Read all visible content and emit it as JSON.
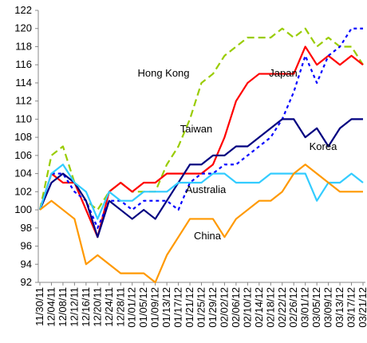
{
  "chart_data": {
    "type": "line",
    "categories": [
      "11/30/11",
      "12/04/11",
      "12/08/11",
      "12/12/11",
      "12/16/11",
      "12/20/11",
      "12/24/11",
      "12/28/11",
      "01/01/12",
      "01/05/12",
      "01/09/12",
      "01/13/12",
      "01/17/12",
      "01/21/12",
      "01/25/12",
      "01/29/12",
      "02/02/12",
      "02/06/12",
      "02/10/12",
      "02/14/12",
      "02/18/12",
      "02/22/12",
      "02/26/12",
      "03/01/12",
      "03/05/12",
      "03/09/12",
      "03/13/12",
      "03/17/12",
      "03/21/12"
    ],
    "series": [
      {
        "name": "Hong Kong",
        "color": "#99cc00",
        "dash": "9,5",
        "values": [
          100,
          106,
          107,
          103,
          101,
          100,
          102,
          103,
          102,
          102,
          102,
          105,
          107,
          110,
          114,
          115,
          117,
          118,
          119,
          119,
          119,
          120,
          119,
          120,
          118,
          119,
          118,
          118,
          116
        ]
      },
      {
        "name": "Japan",
        "color": "#ff0000",
        "values": [
          100,
          104,
          103,
          103,
          100,
          97,
          102,
          103,
          102,
          103,
          103,
          104,
          104,
          104,
          104,
          105,
          108,
          112,
          114,
          115,
          115,
          115,
          115,
          118,
          116,
          117,
          116,
          117,
          116
        ]
      },
      {
        "name": "Taiwan",
        "color": "#0000ff",
        "dash": "4,4",
        "values": [
          100,
          104,
          104,
          102,
          101,
          98,
          101,
          101,
          100,
          101,
          101,
          101,
          100,
          103,
          104,
          104,
          105,
          105,
          106,
          107,
          108,
          110,
          113,
          117,
          114,
          117,
          118,
          120,
          120
        ]
      },
      {
        "name": "Korea",
        "color": "#000080",
        "values": [
          100,
          103,
          104,
          103,
          101,
          97,
          101,
          100,
          99,
          100,
          99,
          101,
          103,
          105,
          105,
          106,
          106,
          107,
          107,
          108,
          109,
          110,
          110,
          108,
          109,
          107,
          109,
          110,
          110
        ]
      },
      {
        "name": "Australia",
        "color": "#33ccff",
        "values": [
          100,
          104,
          105,
          103,
          102,
          99,
          102,
          101,
          101,
          102,
          102,
          102,
          103,
          103,
          103,
          104,
          104,
          103,
          103,
          103,
          104,
          104,
          104,
          104,
          101,
          103,
          103,
          104,
          103
        ]
      },
      {
        "name": "China",
        "color": "#ff9900",
        "values": [
          100,
          101,
          100,
          99,
          94,
          95,
          94,
          93,
          93,
          93,
          92,
          95,
          97,
          99,
          99,
          99,
          97,
          99,
          100,
          101,
          101,
          102,
          104,
          105,
          104,
          103,
          102,
          102,
          102
        ]
      }
    ],
    "ylim": [
      92,
      122
    ],
    "yticks": [
      92,
      94,
      96,
      98,
      100,
      102,
      104,
      106,
      108,
      110,
      112,
      114,
      116,
      118,
      120,
      122
    ]
  }
}
